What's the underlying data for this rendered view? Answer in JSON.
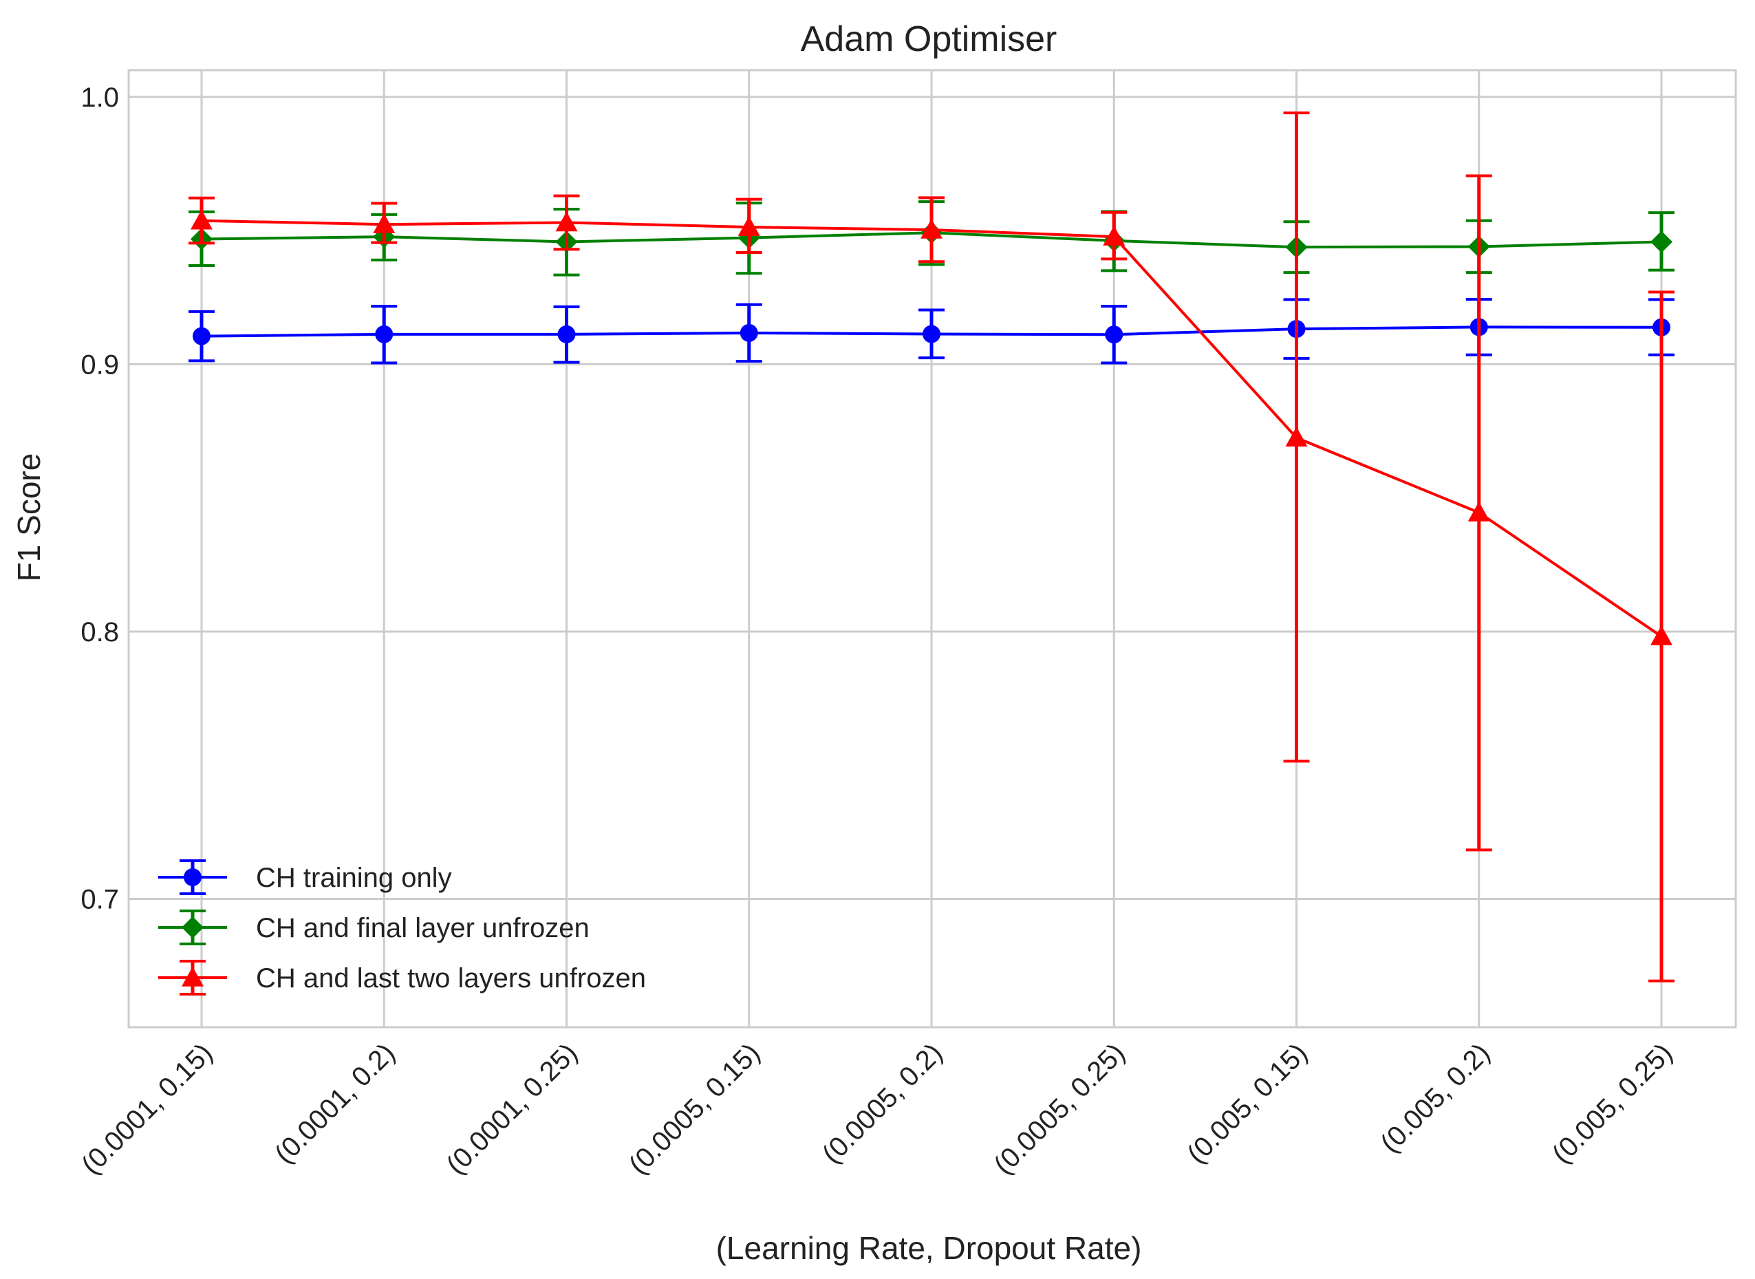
{
  "chart_data": {
    "type": "line",
    "title": "Adam Optimiser",
    "xlabel": "(Learning Rate, Dropout Rate)",
    "ylabel": "F1 Score",
    "ylim": [
      0.652,
      1.01
    ],
    "yticks": [
      0.7,
      0.8,
      0.9,
      1.0
    ],
    "ytick_labels": [
      "0.7",
      "0.8",
      "0.9",
      "1.0"
    ],
    "categories": [
      "(0.0001, 0.15)",
      "(0.0001, 0.2)",
      "(0.0001, 0.25)",
      "(0.0005, 0.15)",
      "(0.0005, 0.2)",
      "(0.0005, 0.25)",
      "(0.005, 0.15)",
      "(0.005, 0.2)",
      "(0.005, 0.25)"
    ],
    "grid": true,
    "legend_position": "lower-left",
    "series": [
      {
        "name": "CH training only",
        "color": "#0000ff",
        "marker": "circle",
        "values": [
          0.9105,
          0.9112,
          0.9112,
          0.9117,
          0.9113,
          0.9111,
          0.9132,
          0.9139,
          0.9138
        ],
        "err_low": [
          0.9013,
          0.9005,
          0.9007,
          0.9011,
          0.9024,
          0.9005,
          0.9022,
          0.9035,
          0.9035
        ],
        "err_high": [
          0.9197,
          0.9217,
          0.9215,
          0.9223,
          0.9203,
          0.9217,
          0.9242,
          0.9243,
          0.9242
        ]
      },
      {
        "name": "CH and final layer unfrozen",
        "color": "#008000",
        "marker": "diamond",
        "values": [
          0.9468,
          0.9477,
          0.9458,
          0.9473,
          0.9492,
          0.9462,
          0.9438,
          0.944,
          0.9458
        ],
        "err_low": [
          0.9369,
          0.939,
          0.9334,
          0.934,
          0.9373,
          0.935,
          0.9343,
          0.9343,
          0.9352
        ],
        "err_high": [
          0.957,
          0.956,
          0.958,
          0.9603,
          0.9608,
          0.9571,
          0.9533,
          0.9537,
          0.9567
        ]
      },
      {
        "name": "CH and last two layers unfrozen",
        "color": "#ff0000",
        "marker": "triangle",
        "values": [
          0.9537,
          0.9523,
          0.953,
          0.9513,
          0.9503,
          0.9477,
          0.8725,
          0.8445,
          0.7982
        ],
        "err_low": [
          0.9453,
          0.9455,
          0.943,
          0.9418,
          0.9384,
          0.9394,
          0.7515,
          0.7183,
          0.6693
        ],
        "err_high": [
          0.9622,
          0.9602,
          0.963,
          0.9617,
          0.9623,
          0.9568,
          0.994,
          0.9705,
          0.927
        ]
      }
    ]
  }
}
